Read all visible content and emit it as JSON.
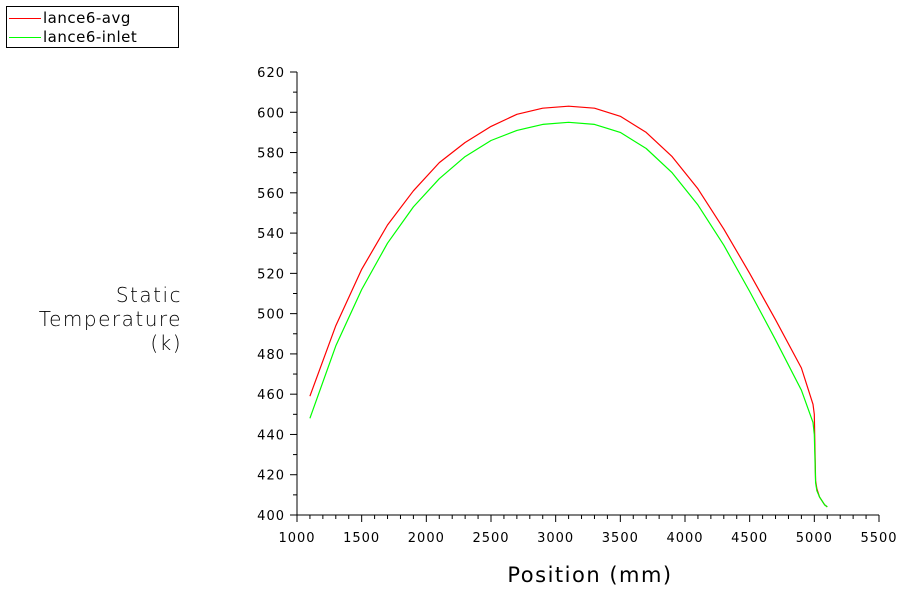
{
  "chart_data": {
    "type": "line",
    "xlabel": "Position (mm)",
    "ylabel_lines": [
      "Static",
      "Temperature",
      "(k)"
    ],
    "xlim": [
      1000,
      5500
    ],
    "ylim": [
      400,
      620
    ],
    "x_ticks": [
      1000,
      1500,
      2000,
      2500,
      3000,
      3500,
      4000,
      4500,
      5000,
      5500
    ],
    "y_ticks": [
      400,
      420,
      440,
      460,
      480,
      500,
      520,
      540,
      560,
      580,
      600,
      620
    ],
    "grid": false,
    "legend_position": "top-left",
    "series": [
      {
        "name": "lance6-avg",
        "color": "#ff0000",
        "x": [
          1100,
          1300,
          1500,
          1700,
          1900,
          2100,
          2300,
          2500,
          2700,
          2900,
          3100,
          3300,
          3500,
          3700,
          3900,
          4100,
          4300,
          4500,
          4700,
          4900,
          4990,
          5000,
          5005,
          5010,
          5020,
          5040,
          5060,
          5080,
          5100
        ],
        "y": [
          459,
          494,
          522,
          544,
          561,
          575,
          585,
          593,
          599,
          602,
          603,
          602,
          598,
          590,
          578,
          562,
          542,
          520,
          497,
          473,
          455,
          450,
          432,
          417,
          413,
          409,
          407,
          405,
          404
        ]
      },
      {
        "name": "lance6-inlet",
        "color": "#00ff00",
        "x": [
          1100,
          1300,
          1500,
          1700,
          1900,
          2100,
          2300,
          2500,
          2700,
          2900,
          3100,
          3300,
          3500,
          3700,
          3900,
          4100,
          4300,
          4500,
          4700,
          4900,
          4990,
          5000,
          5005,
          5010,
          5020,
          5040,
          5060,
          5080,
          5100
        ],
        "y": [
          448,
          484,
          512,
          535,
          553,
          567,
          578,
          586,
          591,
          594,
          595,
          594,
          590,
          582,
          570,
          554,
          534,
          511,
          487,
          462,
          446,
          440,
          427,
          416,
          412,
          409,
          407,
          405,
          404
        ]
      }
    ]
  }
}
